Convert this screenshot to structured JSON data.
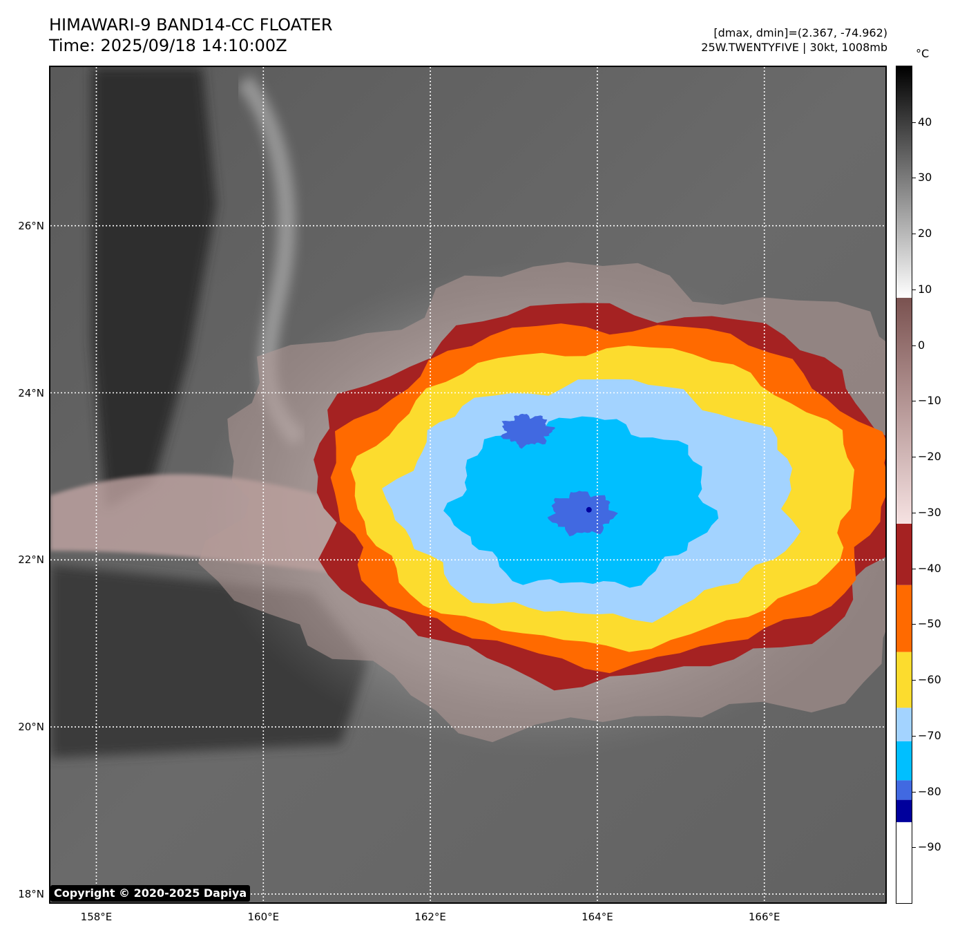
{
  "header": {
    "title_line1": "HIMAWARI-9 BAND14-CC FLOATER",
    "title_line2": "Time: 2025/09/18 14:10:00Z",
    "meta_line1": "[dmax, dmin]=(2.367, -74.962)",
    "meta_line2": "25W.TWENTYFIVE | 30kt, 1008mb"
  },
  "map": {
    "lon_range": [
      157.45,
      167.45
    ],
    "lat_range": [
      17.9,
      27.9
    ],
    "lat_ticks": [
      {
        "value": 26,
        "label": "26°N"
      },
      {
        "value": 24,
        "label": "24°N"
      },
      {
        "value": 22,
        "label": "22°N"
      },
      {
        "value": 20,
        "label": "20°N"
      },
      {
        "value": 18,
        "label": "18°N"
      }
    ],
    "lon_ticks": [
      {
        "value": 158,
        "label": "158°E"
      },
      {
        "value": 160,
        "label": "160°E"
      },
      {
        "value": 162,
        "label": "162°E"
      },
      {
        "value": 164,
        "label": "164°E"
      },
      {
        "value": 166,
        "label": "166°E"
      }
    ],
    "gridlines": "dotted-white",
    "storm_center": {
      "lon": 163.9,
      "lat": 22.6
    },
    "background_color": "#5e5e5e"
  },
  "colorbar": {
    "unit": "°C",
    "range": [
      -100,
      50
    ],
    "ticks": [
      {
        "value": 40,
        "label": "40"
      },
      {
        "value": 30,
        "label": "30"
      },
      {
        "value": 20,
        "label": "20"
      },
      {
        "value": 10,
        "label": "10"
      },
      {
        "value": 0,
        "label": "0"
      },
      {
        "value": -10,
        "label": "−10"
      },
      {
        "value": -20,
        "label": "−20"
      },
      {
        "value": -30,
        "label": "−30"
      },
      {
        "value": -40,
        "label": "−40"
      },
      {
        "value": -50,
        "label": "−50"
      },
      {
        "value": -60,
        "label": "−60"
      },
      {
        "value": -70,
        "label": "−70"
      },
      {
        "value": -80,
        "label": "−80"
      },
      {
        "value": -90,
        "label": "−90"
      }
    ],
    "bands": [
      {
        "from": 8.5,
        "to": 50,
        "type": "gradient",
        "top_color": "#000000",
        "bottom_color": "#ffffff"
      },
      {
        "from": -32,
        "to": 8.5,
        "type": "gradient",
        "top_color": "#7a5250",
        "bottom_color": "#f6e2e2"
      },
      {
        "from": -43,
        "to": -32,
        "color": "#a52222"
      },
      {
        "from": -55,
        "to": -43,
        "color": "#ff6a00"
      },
      {
        "from": -65,
        "to": -55,
        "color": "#fcdc2e"
      },
      {
        "from": -71,
        "to": -65,
        "color": "#a3d3ff"
      },
      {
        "from": -78,
        "to": -71,
        "color": "#00bfff"
      },
      {
        "from": -81.5,
        "to": -78,
        "color": "#4169e1"
      },
      {
        "from": -85.5,
        "to": -81.5,
        "color": "#00009c"
      },
      {
        "from": -100,
        "to": -85.5,
        "color": "#ffffff"
      }
    ]
  },
  "copyright": "Copyright © 2020-2025 Dapiya"
}
